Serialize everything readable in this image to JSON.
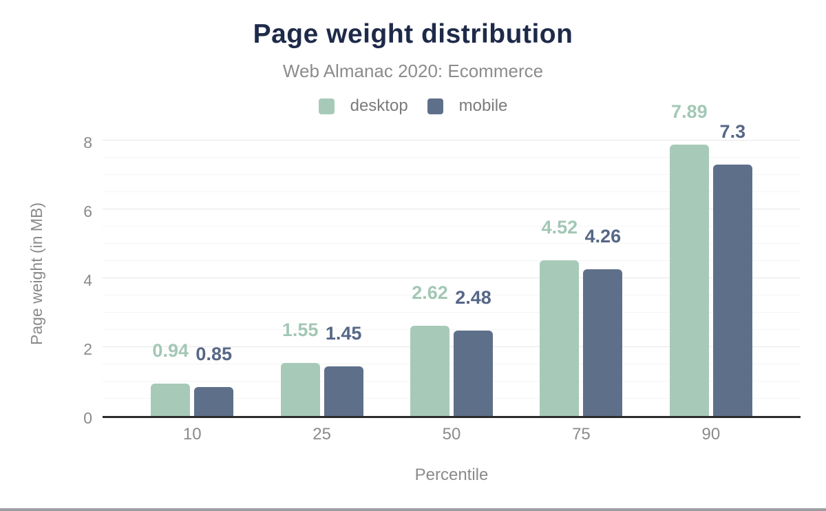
{
  "chart_data": {
    "type": "bar",
    "title": "Page weight distribution",
    "subtitle": "Web Almanac 2020: Ecommerce",
    "xlabel": "Percentile",
    "ylabel": "Page weight (in MB)",
    "categories": [
      "10",
      "25",
      "50",
      "75",
      "90"
    ],
    "series": [
      {
        "name": "desktop",
        "color": "#a7cab8",
        "label_color": "#a3c7b5",
        "values": [
          0.94,
          1.55,
          2.62,
          4.52,
          7.89
        ],
        "value_labels": [
          "0.94",
          "1.55",
          "2.62",
          "4.52",
          "7.89"
        ]
      },
      {
        "name": "mobile",
        "color": "#5e7089",
        "label_color": "#566786",
        "values": [
          0.85,
          1.45,
          2.48,
          4.26,
          7.3
        ],
        "value_labels": [
          "0.85",
          "1.45",
          "2.48",
          "4.26",
          "7.3"
        ]
      }
    ],
    "ylim": [
      0,
      8.4
    ],
    "yticks": [
      0,
      2,
      4,
      6,
      8
    ],
    "grid_minor_step": 0.5,
    "grid_max": 8,
    "grid_on": true,
    "legend_position": "top",
    "colors": {
      "title": "#1e2a49",
      "subtitle_text": "#8c8c8c",
      "axis_text": "#8a8a8a",
      "legend_text": "#7b7b7b",
      "axis_line": "#2b2b2b",
      "gridline_minor": "#f4f4f4",
      "gridline_major": "#e7e7e7",
      "bottom_strip": "#9e9ea2",
      "background": "#ffffff"
    }
  }
}
